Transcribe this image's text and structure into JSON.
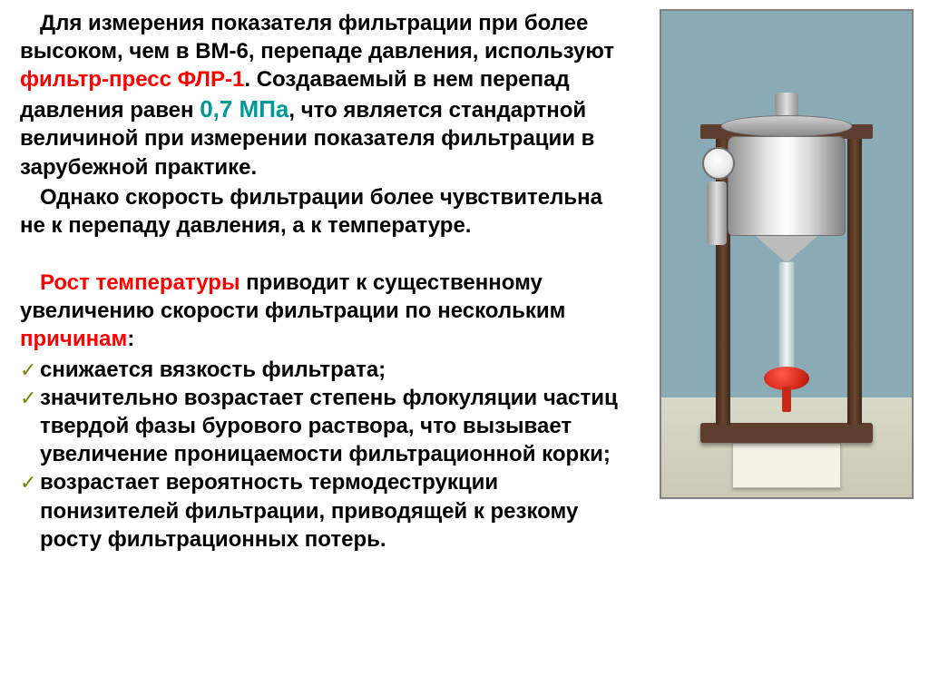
{
  "p1_part1": "Для измерения показателя фильтрации при более высоком, чем в ВМ-6,  перепаде давления, используют ",
  "p1_hl1": "фильтр-пресс ФЛР-1",
  "p1_part2": ". Создаваемый в нем перепад давления равен ",
  "p1_hl2": "0,7 МПа",
  "p1_part3": ", что является стандартной величиной при измерении показателя фильтрации в зарубежной практике.",
  "p2": "Однако скорость фильтрации более чувствительна не к перепаду давления, а к температуре.",
  "p3_hl": "Рост температуры",
  "p3_part1": " приводит к существенному увеличению скорости фильтрации по нескольким ",
  "p3_hl2": "причинам",
  "p3_colon": ":",
  "bullets": [
    "снижается вязкость фильтрата;",
    "значительно возрастает степень флокуляции частиц твердой фазы бурового раствора, что вызывает увеличение проницаемости фильтрационной корки;",
    "возрастает вероятность термодеструкции понизителей фильтрации, приводящей к резкому росту фильтрационных потерь."
  ],
  "colors": {
    "red": "#ff0000",
    "teal": "#009999",
    "olive": "#808000",
    "text": "#000000"
  }
}
